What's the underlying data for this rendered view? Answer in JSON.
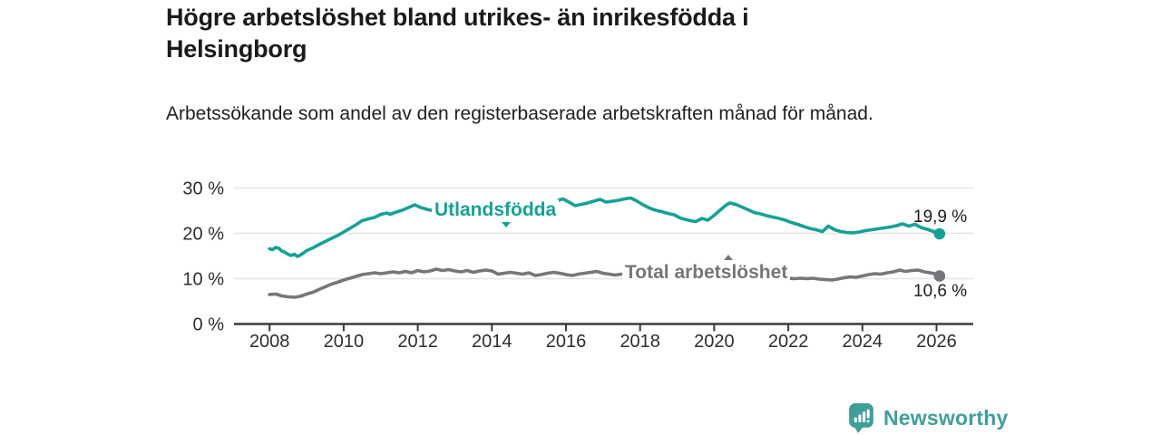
{
  "header": {
    "title": "Högre arbetslöshet bland utrikes- än inrikesfödda i Helsingborg",
    "subtitle": "Arbetssökande som andel av den registerbaserade arbetskraften månad för månad."
  },
  "branding": {
    "logo_text": "Newsworthy",
    "logo_color": "#3f9f9b"
  },
  "colors": {
    "accent_teal": "#15a296",
    "series_gray": "#76767a",
    "gridline": "#e3e3e3",
    "axis": "#3b3b3b",
    "text_dark": "#1a1a1a"
  },
  "chart_data": {
    "type": "line",
    "title": "Högre arbetslöshet bland utrikes- än inrikesfödda i Helsingborg",
    "subtitle": "Arbetssökande som andel av den registerbaserade arbetskraften månad för månad.",
    "unit": "%",
    "grid": "horizontal",
    "legend_position": "inline-labels",
    "xlim": [
      2007.7,
      2027.0
    ],
    "ylim": [
      0,
      32
    ],
    "yticks": [
      {
        "value": 0,
        "label": "0 %"
      },
      {
        "value": 10,
        "label": "10 %"
      },
      {
        "value": 20,
        "label": "20 %"
      },
      {
        "value": 30,
        "label": "30 %"
      }
    ],
    "xticks": [
      {
        "value": 2008,
        "label": "2008"
      },
      {
        "value": 2010,
        "label": "2010"
      },
      {
        "value": 2012,
        "label": "2012"
      },
      {
        "value": 2014,
        "label": "2014"
      },
      {
        "value": 2016,
        "label": "2016"
      },
      {
        "value": 2018,
        "label": "2018"
      },
      {
        "value": 2020,
        "label": "2020"
      },
      {
        "value": 2022,
        "label": "2022"
      },
      {
        "value": 2024,
        "label": "2024"
      },
      {
        "value": 2026,
        "label": "2026"
      }
    ],
    "series": [
      {
        "name": "Utlandsfödda",
        "color": "#15a296",
        "end_label": "19,9 %",
        "end_value": 19.9,
        "points": [
          [
            2008.0,
            16.6
          ],
          [
            2008.08,
            16.4
          ],
          [
            2008.17,
            16.9
          ],
          [
            2008.25,
            16.7
          ],
          [
            2008.33,
            16.1
          ],
          [
            2008.42,
            15.8
          ],
          [
            2008.5,
            15.4
          ],
          [
            2008.58,
            15.1
          ],
          [
            2008.67,
            15.4
          ],
          [
            2008.75,
            14.9
          ],
          [
            2008.83,
            15.2
          ],
          [
            2008.92,
            15.7
          ],
          [
            2009.0,
            16.2
          ],
          [
            2009.17,
            16.8
          ],
          [
            2009.33,
            17.5
          ],
          [
            2009.5,
            18.2
          ],
          [
            2009.67,
            18.9
          ],
          [
            2009.83,
            19.5
          ],
          [
            2010.0,
            20.3
          ],
          [
            2010.17,
            21.1
          ],
          [
            2010.33,
            21.9
          ],
          [
            2010.5,
            22.8
          ],
          [
            2010.67,
            23.2
          ],
          [
            2010.83,
            23.5
          ],
          [
            2011.0,
            24.2
          ],
          [
            2011.17,
            24.5
          ],
          [
            2011.25,
            24.2
          ],
          [
            2011.42,
            24.7
          ],
          [
            2011.58,
            25.1
          ],
          [
            2011.75,
            25.7
          ],
          [
            2011.92,
            26.3
          ],
          [
            2012.08,
            25.7
          ],
          [
            2012.25,
            25.3
          ],
          [
            2012.35,
            25.1
          ],
          [
            2012.5,
            25.4
          ],
          [
            2012.67,
            25.8
          ],
          [
            2012.83,
            26.1
          ],
          [
            2012.92,
            26.3
          ],
          [
            2013.08,
            25.8
          ],
          [
            2013.25,
            25.6
          ],
          [
            2013.42,
            25.9
          ],
          [
            2013.58,
            25.7
          ],
          [
            2013.75,
            26.0
          ],
          [
            2013.92,
            26.2
          ],
          [
            2014.08,
            27.0
          ],
          [
            2014.25,
            26.6
          ],
          [
            2014.42,
            26.2
          ],
          [
            2014.58,
            26.4
          ],
          [
            2014.75,
            26.2
          ],
          [
            2014.92,
            26.6
          ],
          [
            2015.08,
            26.4
          ],
          [
            2015.25,
            26.7
          ],
          [
            2015.42,
            26.5
          ],
          [
            2015.58,
            26.9
          ],
          [
            2015.75,
            27.2
          ],
          [
            2015.92,
            27.6
          ],
          [
            2016.08,
            26.9
          ],
          [
            2016.25,
            26.1
          ],
          [
            2016.42,
            26.4
          ],
          [
            2016.58,
            26.7
          ],
          [
            2016.75,
            27.1
          ],
          [
            2016.92,
            27.5
          ],
          [
            2017.08,
            26.9
          ],
          [
            2017.25,
            27.1
          ],
          [
            2017.42,
            27.3
          ],
          [
            2017.58,
            27.6
          ],
          [
            2017.75,
            27.8
          ],
          [
            2017.92,
            27.1
          ],
          [
            2018.08,
            26.3
          ],
          [
            2018.25,
            25.6
          ],
          [
            2018.42,
            25.1
          ],
          [
            2018.58,
            24.8
          ],
          [
            2018.75,
            24.4
          ],
          [
            2018.92,
            24.1
          ],
          [
            2019.08,
            23.4
          ],
          [
            2019.25,
            23.0
          ],
          [
            2019.42,
            22.7
          ],
          [
            2019.5,
            22.6
          ],
          [
            2019.67,
            23.3
          ],
          [
            2019.83,
            22.9
          ],
          [
            2020.0,
            24.0
          ],
          [
            2020.17,
            25.2
          ],
          [
            2020.33,
            26.3
          ],
          [
            2020.42,
            26.7
          ],
          [
            2020.58,
            26.4
          ],
          [
            2020.75,
            25.8
          ],
          [
            2020.92,
            25.2
          ],
          [
            2021.08,
            24.6
          ],
          [
            2021.25,
            24.3
          ],
          [
            2021.42,
            23.9
          ],
          [
            2021.58,
            23.6
          ],
          [
            2021.75,
            23.3
          ],
          [
            2021.92,
            22.9
          ],
          [
            2022.08,
            22.4
          ],
          [
            2022.25,
            22.0
          ],
          [
            2022.42,
            21.5
          ],
          [
            2022.58,
            21.1
          ],
          [
            2022.75,
            20.8
          ],
          [
            2022.92,
            20.4
          ],
          [
            2023.08,
            21.6
          ],
          [
            2023.25,
            20.8
          ],
          [
            2023.42,
            20.4
          ],
          [
            2023.58,
            20.2
          ],
          [
            2023.75,
            20.1
          ],
          [
            2023.92,
            20.3
          ],
          [
            2024.08,
            20.6
          ],
          [
            2024.25,
            20.8
          ],
          [
            2024.42,
            21.0
          ],
          [
            2024.58,
            21.2
          ],
          [
            2024.75,
            21.4
          ],
          [
            2024.92,
            21.7
          ],
          [
            2025.08,
            22.1
          ],
          [
            2025.25,
            21.6
          ],
          [
            2025.42,
            22.0
          ],
          [
            2025.58,
            21.3
          ],
          [
            2025.75,
            20.9
          ],
          [
            2025.92,
            20.4
          ],
          [
            2026.08,
            19.9
          ]
        ]
      },
      {
        "name": "Total arbetslöshet",
        "color": "#76767a",
        "end_label": "10,6 %",
        "end_value": 10.6,
        "points": [
          [
            2008.0,
            6.5
          ],
          [
            2008.17,
            6.6
          ],
          [
            2008.33,
            6.2
          ],
          [
            2008.5,
            6.0
          ],
          [
            2008.67,
            5.9
          ],
          [
            2008.83,
            6.1
          ],
          [
            2009.0,
            6.6
          ],
          [
            2009.17,
            7.0
          ],
          [
            2009.33,
            7.6
          ],
          [
            2009.5,
            8.2
          ],
          [
            2009.67,
            8.8
          ],
          [
            2009.83,
            9.2
          ],
          [
            2010.0,
            9.7
          ],
          [
            2010.17,
            10.1
          ],
          [
            2010.33,
            10.5
          ],
          [
            2010.5,
            10.9
          ],
          [
            2010.67,
            11.1
          ],
          [
            2010.83,
            11.3
          ],
          [
            2011.0,
            11.1
          ],
          [
            2011.17,
            11.3
          ],
          [
            2011.33,
            11.5
          ],
          [
            2011.5,
            11.3
          ],
          [
            2011.67,
            11.6
          ],
          [
            2011.83,
            11.3
          ],
          [
            2012.0,
            11.8
          ],
          [
            2012.17,
            11.5
          ],
          [
            2012.33,
            11.7
          ],
          [
            2012.5,
            12.1
          ],
          [
            2012.67,
            11.8
          ],
          [
            2012.83,
            12.0
          ],
          [
            2013.0,
            11.7
          ],
          [
            2013.17,
            11.5
          ],
          [
            2013.33,
            11.8
          ],
          [
            2013.5,
            11.4
          ],
          [
            2013.67,
            11.7
          ],
          [
            2013.83,
            11.9
          ],
          [
            2014.0,
            11.7
          ],
          [
            2014.17,
            11.0
          ],
          [
            2014.33,
            11.2
          ],
          [
            2014.5,
            11.4
          ],
          [
            2014.67,
            11.2
          ],
          [
            2014.83,
            11.0
          ],
          [
            2015.0,
            11.3
          ],
          [
            2015.17,
            10.7
          ],
          [
            2015.33,
            10.9
          ],
          [
            2015.5,
            11.2
          ],
          [
            2015.67,
            11.4
          ],
          [
            2015.83,
            11.2
          ],
          [
            2016.0,
            10.9
          ],
          [
            2016.17,
            10.7
          ],
          [
            2016.33,
            11.0
          ],
          [
            2016.5,
            11.2
          ],
          [
            2016.67,
            11.4
          ],
          [
            2016.83,
            11.6
          ],
          [
            2017.0,
            11.2
          ],
          [
            2017.17,
            11.0
          ],
          [
            2017.33,
            10.8
          ],
          [
            2017.5,
            11.0
          ],
          [
            2017.67,
            11.1
          ],
          [
            2017.83,
            10.9
          ],
          [
            2018.0,
            10.7
          ],
          [
            2018.17,
            10.5
          ],
          [
            2018.33,
            10.7
          ],
          [
            2018.5,
            10.8
          ],
          [
            2018.67,
            10.6
          ],
          [
            2018.83,
            10.4
          ],
          [
            2019.0,
            10.2
          ],
          [
            2019.17,
            10.3
          ],
          [
            2019.33,
            10.5
          ],
          [
            2019.5,
            10.3
          ],
          [
            2019.67,
            10.2
          ],
          [
            2019.83,
            10.4
          ],
          [
            2020.0,
            10.6
          ],
          [
            2020.17,
            10.9
          ],
          [
            2020.33,
            11.1
          ],
          [
            2020.5,
            11.2
          ],
          [
            2020.67,
            11.0
          ],
          [
            2020.83,
            10.9
          ],
          [
            2021.0,
            10.7
          ],
          [
            2021.17,
            10.6
          ],
          [
            2021.33,
            10.5
          ],
          [
            2021.5,
            10.4
          ],
          [
            2021.67,
            10.3
          ],
          [
            2021.83,
            10.2
          ],
          [
            2022.0,
            10.1
          ],
          [
            2022.17,
            10.0
          ],
          [
            2022.33,
            10.1
          ],
          [
            2022.5,
            10.0
          ],
          [
            2022.67,
            10.1
          ],
          [
            2022.83,
            9.9
          ],
          [
            2023.0,
            9.8
          ],
          [
            2023.17,
            9.7
          ],
          [
            2023.33,
            9.9
          ],
          [
            2023.5,
            10.2
          ],
          [
            2023.67,
            10.4
          ],
          [
            2023.83,
            10.3
          ],
          [
            2024.0,
            10.6
          ],
          [
            2024.17,
            10.9
          ],
          [
            2024.33,
            11.1
          ],
          [
            2024.5,
            11.0
          ],
          [
            2024.67,
            11.3
          ],
          [
            2024.83,
            11.5
          ],
          [
            2025.0,
            11.9
          ],
          [
            2025.17,
            11.6
          ],
          [
            2025.33,
            11.8
          ],
          [
            2025.5,
            11.9
          ],
          [
            2025.67,
            11.5
          ],
          [
            2025.83,
            11.3
          ],
          [
            2026.0,
            11.0
          ],
          [
            2026.08,
            10.6
          ]
        ]
      }
    ]
  }
}
